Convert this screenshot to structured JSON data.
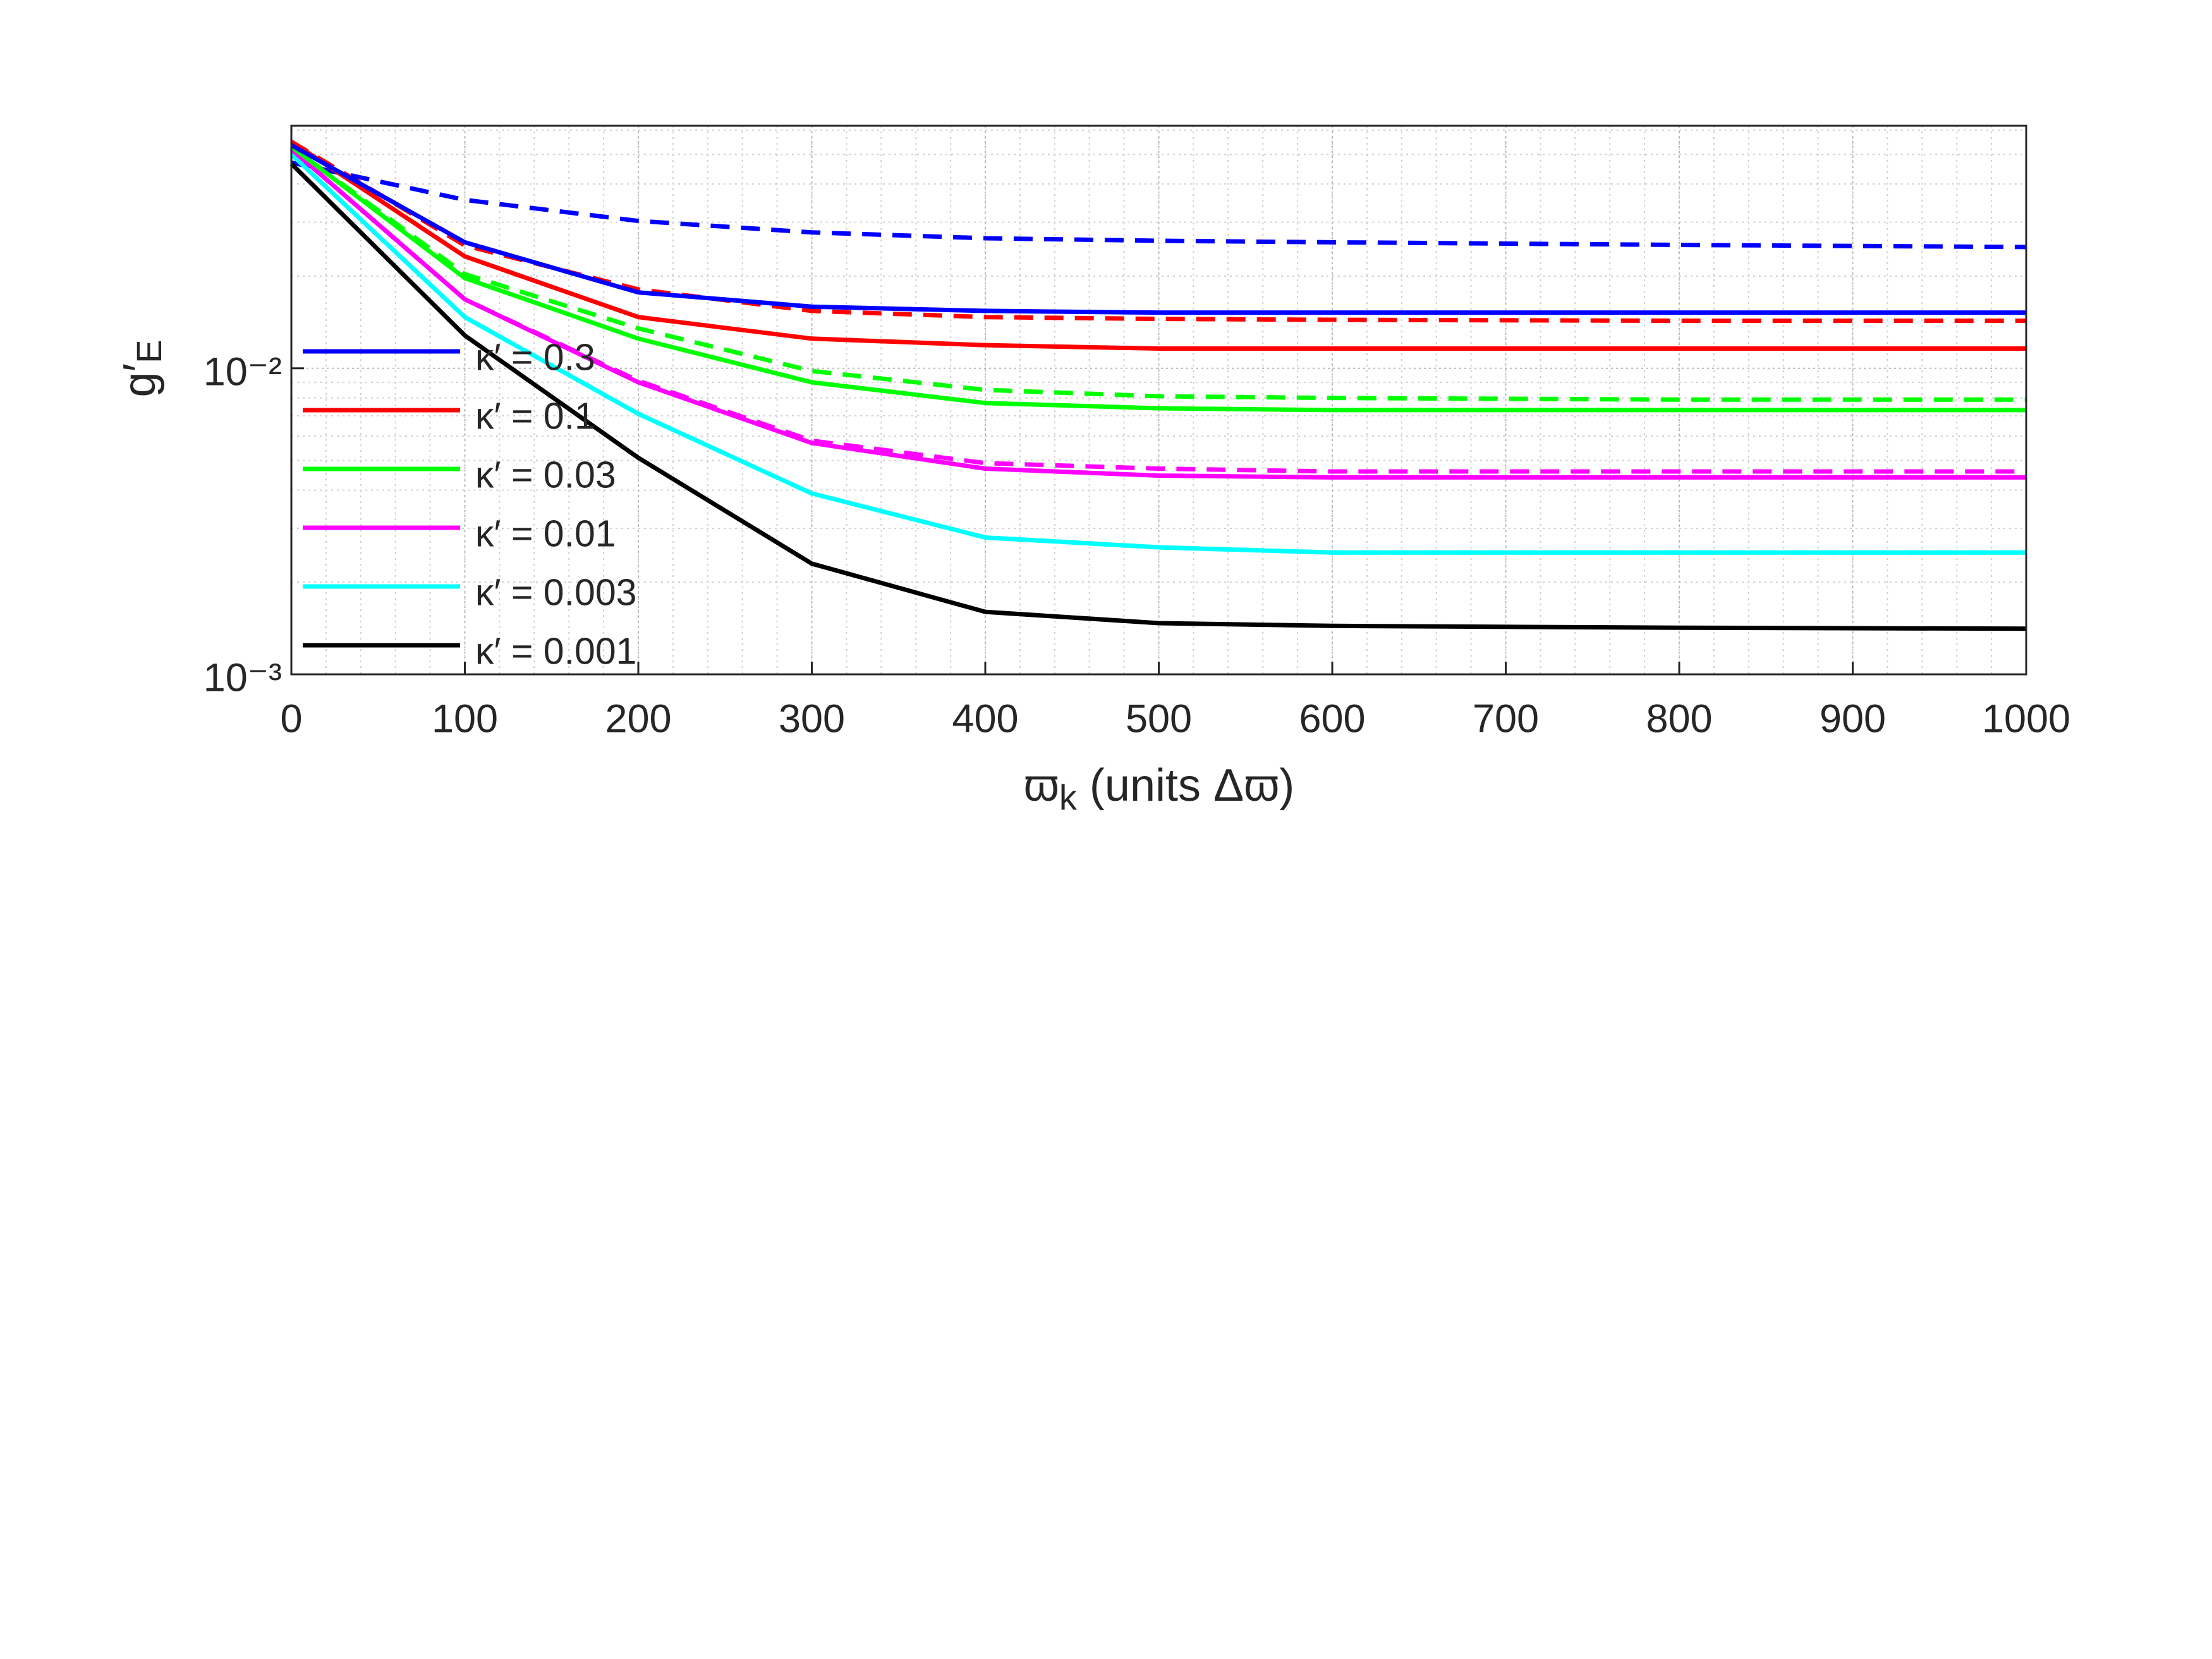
{
  "chart_data": {
    "type": "line",
    "ylabel": "g′",
    "ylabel_sub": "E",
    "xlabel": "ϖ",
    "xlabel_sub": "k",
    "xlabel_rest": " (units Δϖ)",
    "x": [
      0,
      100,
      200,
      300,
      400,
      500,
      600,
      800,
      1000
    ],
    "series": [
      {
        "name": "κ′ = 0.3",
        "color": "#0000ff",
        "values": [
          0.0536,
          0.0258,
          0.0177,
          0.0159,
          0.0154,
          0.0152,
          0.0152,
          0.0152,
          0.0152
        ]
      },
      {
        "name": "κ′ = 0.1",
        "color": "#ff0000",
        "values": [
          0.055,
          0.0232,
          0.0147,
          0.0125,
          0.0119,
          0.0116,
          0.0116,
          0.0116,
          0.0116
        ]
      },
      {
        "name": "κ′ = 0.03",
        "color": "#00ff00",
        "values": [
          0.053,
          0.0197,
          0.0125,
          0.009,
          0.0077,
          0.0074,
          0.0073,
          0.0073,
          0.0073
        ]
      },
      {
        "name": "κ′ = 0.01",
        "color": "#ff00ff",
        "values": [
          0.052,
          0.0168,
          0.009,
          0.0057,
          0.0047,
          0.00446,
          0.0044,
          0.0044,
          0.0044
        ]
      },
      {
        "name": "κ′ = 0.003",
        "color": "#00ffff",
        "values": [
          0.05,
          0.0147,
          0.0071,
          0.0039,
          0.0028,
          0.0026,
          0.0025,
          0.0025,
          0.0025
        ]
      },
      {
        "name": "κ′ = 0.001",
        "color": "#000000",
        "values": [
          0.0466,
          0.0128,
          0.0051,
          0.0023,
          0.0016,
          0.00147,
          0.00144,
          0.00142,
          0.00141
        ]
      },
      {
        "color": "#0000ff",
        "dashed": true,
        "values": [
          0.047,
          0.0355,
          0.0303,
          0.0278,
          0.0266,
          0.0261,
          0.0258,
          0.0253,
          0.0249
        ]
      },
      {
        "color": "#ff0000",
        "dashed": true,
        "values": [
          0.055,
          0.0252,
          0.0181,
          0.0154,
          0.0147,
          0.0145,
          0.0144,
          0.0143,
          0.0143
        ]
      },
      {
        "color": "#00ff00",
        "dashed": true,
        "values": [
          0.053,
          0.0203,
          0.0135,
          0.0098,
          0.0085,
          0.0081,
          0.008,
          0.0079,
          0.0079
        ]
      },
      {
        "color": "#ff00ff",
        "dashed": true,
        "values": [
          0.052,
          0.0168,
          0.0091,
          0.0058,
          0.0049,
          0.0047,
          0.0046,
          0.0046,
          0.0046
        ]
      },
      {
        "color": "#00ffff",
        "dashed": true,
        "values": [
          0.05,
          0.0147,
          0.0071,
          0.0039,
          0.0028,
          0.0026,
          0.0025,
          0.0025,
          0.0025
        ]
      }
    ],
    "xlim": [
      0,
      1000
    ],
    "xticks": [
      0,
      100,
      200,
      300,
      400,
      500,
      600,
      700,
      800,
      900,
      1000
    ],
    "ylim": [
      0.001,
      0.062
    ],
    "log_y": true,
    "yticks": [
      {
        "value": 0.001,
        "label": "10⁻³"
      },
      {
        "value": 0.01,
        "label": "10⁻²"
      }
    ],
    "grid": true,
    "minor_grid": true,
    "legend_loc": "center left"
  }
}
